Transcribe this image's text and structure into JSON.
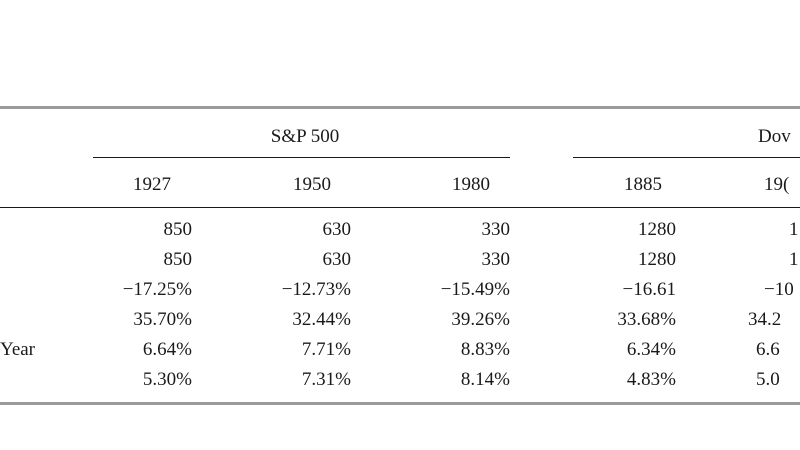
{
  "table": {
    "groups": [
      {
        "label": "S&P 500"
      },
      {
        "label": "Dov"
      }
    ],
    "years": [
      "1927",
      "1950",
      "1980",
      "1885",
      "19("
    ],
    "row_labels": [
      "",
      "",
      "",
      "",
      "Year",
      ""
    ],
    "rows": [
      [
        "850",
        "630",
        "330",
        "1280",
        "1"
      ],
      [
        "850",
        "630",
        "330",
        "1280",
        "1"
      ],
      [
        "−17.25%",
        "−12.73%",
        "−15.49%",
        "−16.61",
        "−10"
      ],
      [
        "35.70%",
        "32.44%",
        "39.26%",
        "33.68%",
        "34.2"
      ],
      [
        "6.64%",
        "7.71%",
        "8.83%",
        "6.34%",
        "6.6"
      ],
      [
        "5.30%",
        "7.31%",
        "8.14%",
        "4.83%",
        "5.0"
      ]
    ]
  }
}
